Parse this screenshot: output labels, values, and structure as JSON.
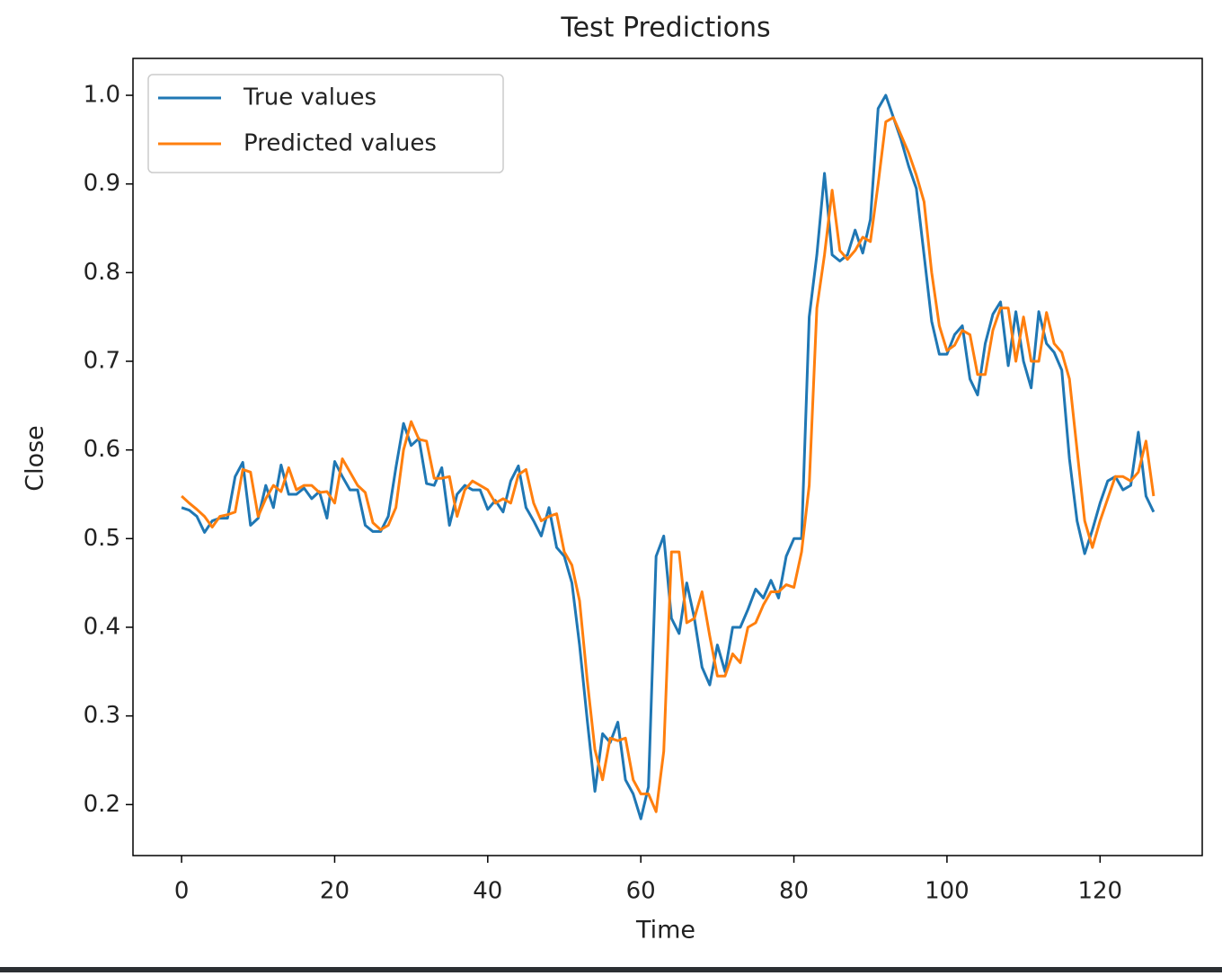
{
  "chart_data": {
    "type": "line",
    "title": "Test Predictions",
    "x_label": "Time",
    "y_label": "Close",
    "x": [
      0,
      1,
      2,
      3,
      4,
      5,
      6,
      7,
      8,
      9,
      10,
      11,
      12,
      13,
      14,
      15,
      16,
      17,
      18,
      19,
      20,
      21,
      22,
      23,
      24,
      25,
      26,
      27,
      28,
      29,
      30,
      31,
      32,
      33,
      34,
      35,
      36,
      37,
      38,
      39,
      40,
      41,
      42,
      43,
      44,
      45,
      46,
      47,
      48,
      49,
      50,
      51,
      52,
      53,
      54,
      55,
      56,
      57,
      58,
      59,
      60,
      61,
      62,
      63,
      64,
      65,
      66,
      67,
      68,
      69,
      70,
      71,
      72,
      73,
      74,
      75,
      76,
      77,
      78,
      79,
      80,
      81,
      82,
      83,
      84,
      85,
      86,
      87,
      88,
      89,
      90,
      91,
      92,
      93,
      94,
      95,
      96,
      97,
      98,
      99,
      100,
      101,
      102,
      103,
      104,
      105,
      106,
      107,
      108,
      109,
      110,
      111,
      112,
      113,
      114,
      115,
      116,
      117,
      118,
      119,
      120,
      121,
      122,
      123,
      124,
      125,
      126,
      127
    ],
    "series": [
      {
        "name": "True values",
        "color": "#1f77b4",
        "values": [
          0.535,
          0.532,
          0.525,
          0.507,
          0.52,
          0.523,
          0.523,
          0.57,
          0.586,
          0.515,
          0.523,
          0.56,
          0.535,
          0.583,
          0.55,
          0.55,
          0.557,
          0.545,
          0.553,
          0.523,
          0.587,
          0.57,
          0.555,
          0.555,
          0.515,
          0.508,
          0.508,
          0.525,
          0.58,
          0.63,
          0.605,
          0.613,
          0.562,
          0.56,
          0.58,
          0.515,
          0.55,
          0.56,
          0.555,
          0.555,
          0.533,
          0.543,
          0.53,
          0.565,
          0.582,
          0.535,
          0.52,
          0.503,
          0.535,
          0.49,
          0.48,
          0.45,
          0.38,
          0.295,
          0.215,
          0.28,
          0.27,
          0.293,
          0.228,
          0.212,
          0.184,
          0.22,
          0.48,
          0.503,
          0.41,
          0.393,
          0.45,
          0.41,
          0.355,
          0.335,
          0.38,
          0.35,
          0.4,
          0.4,
          0.42,
          0.443,
          0.433,
          0.453,
          0.433,
          0.48,
          0.5,
          0.5,
          0.75,
          0.82,
          0.912,
          0.82,
          0.813,
          0.82,
          0.848,
          0.822,
          0.86,
          0.985,
          1.0,
          0.975,
          0.95,
          0.92,
          0.895,
          0.82,
          0.745,
          0.708,
          0.708,
          0.73,
          0.74,
          0.68,
          0.662,
          0.72,
          0.753,
          0.767,
          0.695,
          0.756,
          0.7,
          0.67,
          0.756,
          0.72,
          0.71,
          0.69,
          0.59,
          0.52,
          0.483,
          0.51,
          0.54,
          0.565,
          0.57,
          0.555,
          0.56,
          0.62,
          0.548,
          0.53
        ]
      },
      {
        "name": "Predicted values",
        "color": "#ff7f0e",
        "values": [
          0.548,
          0.54,
          0.533,
          0.525,
          0.513,
          0.525,
          0.527,
          0.53,
          0.578,
          0.575,
          0.525,
          0.545,
          0.56,
          0.553,
          0.58,
          0.555,
          0.56,
          0.56,
          0.552,
          0.553,
          0.54,
          0.59,
          0.575,
          0.56,
          0.552,
          0.518,
          0.51,
          0.515,
          0.535,
          0.6,
          0.632,
          0.612,
          0.61,
          0.568,
          0.568,
          0.57,
          0.525,
          0.555,
          0.565,
          0.56,
          0.555,
          0.54,
          0.545,
          0.54,
          0.572,
          0.578,
          0.54,
          0.52,
          0.525,
          0.528,
          0.485,
          0.47,
          0.43,
          0.34,
          0.262,
          0.228,
          0.275,
          0.272,
          0.275,
          0.228,
          0.212,
          0.212,
          0.192,
          0.26,
          0.485,
          0.485,
          0.405,
          0.41,
          0.44,
          0.39,
          0.345,
          0.345,
          0.37,
          0.36,
          0.4,
          0.405,
          0.425,
          0.44,
          0.44,
          0.448,
          0.445,
          0.485,
          0.56,
          0.76,
          0.82,
          0.893,
          0.825,
          0.815,
          0.825,
          0.84,
          0.835,
          0.9,
          0.97,
          0.975,
          0.955,
          0.935,
          0.91,
          0.88,
          0.8,
          0.74,
          0.712,
          0.718,
          0.735,
          0.73,
          0.685,
          0.685,
          0.735,
          0.76,
          0.76,
          0.7,
          0.75,
          0.7,
          0.7,
          0.755,
          0.72,
          0.71,
          0.68,
          0.6,
          0.52,
          0.49,
          0.52,
          0.545,
          0.57,
          0.57,
          0.565,
          0.575,
          0.61,
          0.548
        ]
      }
    ],
    "xlim": [
      -6.35,
      133.35
    ],
    "ylim": [
      0.1425,
      1.0416
    ],
    "xticks": [
      0,
      20,
      40,
      60,
      80,
      100,
      120
    ],
    "yticks": [
      0.2,
      0.3,
      0.4,
      0.5,
      0.6,
      0.7,
      0.8,
      0.9,
      {
        "value": 1,
        "label": "1.0"
      }
    ],
    "legend": "upper left",
    "grid": false
  }
}
